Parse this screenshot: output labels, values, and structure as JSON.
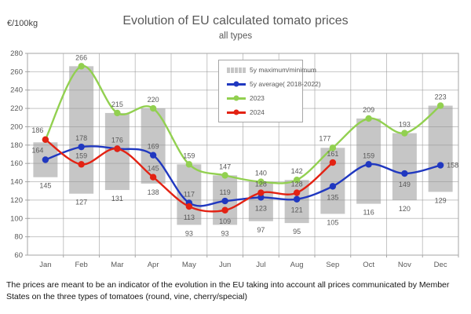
{
  "header": {
    "unit_label": "€/100kg",
    "title": "Evolution of EU calculated tomato prices",
    "subtitle": "all types"
  },
  "legend": {
    "items": [
      {
        "label": "5y maximum/minimum",
        "swatch": "gray-range-bar"
      },
      {
        "label": "5y average( 2018-2022)",
        "swatch": "blue-line-marker"
      },
      {
        "label": "2023",
        "swatch": "green-line-marker"
      },
      {
        "label": "2024",
        "swatch": "red-line-marker"
      }
    ]
  },
  "footer": {
    "text": "The prices are meant to be an indicator of the evolution in the EU taking into account all prices communicated by Member States on the three types of tomatoes (round, vine, cherry/special)"
  },
  "chart_data": {
    "type": "line",
    "title": "Evolution of EU calculated tomato prices",
    "subtitle": "all types",
    "ylabel": "€/100kg",
    "grid": true,
    "legend_position": "inside-top-right",
    "categories": [
      "Jan",
      "Feb",
      "Mar",
      "Apr",
      "May",
      "Jun",
      "Jul",
      "Aug",
      "Sep",
      "Oct",
      "Nov",
      "Dec"
    ],
    "y_axis": {
      "min": 60,
      "max": 280,
      "step": 20
    },
    "range_bars": {
      "name": "5y maximum/minimum",
      "color": "#C6C6C6",
      "min": [
        145,
        127,
        131,
        138,
        93,
        93,
        97,
        95,
        105,
        116,
        120,
        129
      ],
      "max_estimated": [
        183,
        266,
        215,
        220,
        159,
        147,
        140,
        142,
        177,
        209,
        193,
        223
      ]
    },
    "series": [
      {
        "name": "2023",
        "color": "#92D050",
        "values": [
          186,
          266,
          215,
          220,
          159,
          147,
          140,
          142,
          177,
          209,
          193,
          223
        ],
        "label_positions": [
          "none",
          "above",
          "above",
          "above",
          "above",
          "above",
          "above",
          "above",
          "above-left",
          "above",
          "above",
          "above"
        ]
      },
      {
        "name": "5y average( 2018-2022)",
        "color": "#2038C0",
        "values": [
          164,
          178,
          176,
          169,
          117,
          119,
          123,
          121,
          135,
          159,
          149,
          158
        ],
        "label_positions": [
          "above-left",
          "above",
          "above",
          "above",
          "above",
          "above",
          "below",
          "below",
          "below",
          "above",
          "below",
          "right"
        ]
      },
      {
        "name": "2024",
        "color": "#E32213",
        "values": [
          186,
          159,
          176,
          145,
          113,
          109,
          128,
          128,
          161
        ],
        "label_positions": [
          "above-left",
          "above",
          "none",
          "above",
          "below",
          "below",
          "above",
          "above",
          "above"
        ]
      }
    ],
    "min_value_labels": [
      145,
      127,
      131,
      138,
      93,
      93,
      97,
      95,
      105,
      116,
      120,
      129
    ]
  }
}
